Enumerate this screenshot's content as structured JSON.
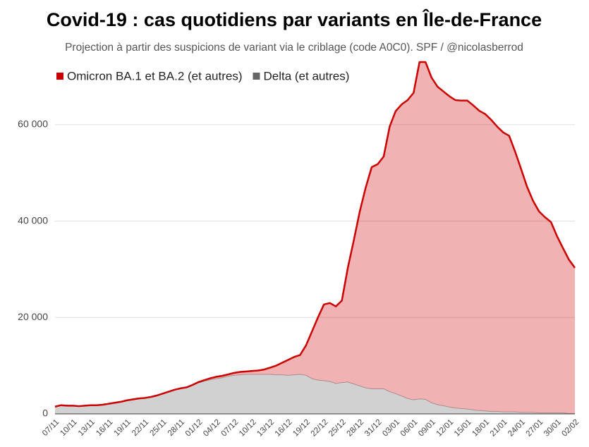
{
  "chart_data": {
    "type": "stacked_area",
    "title": "Covid-19 : cas quotidiens par variants en Île-de-France",
    "subtitle": "Projection à partir des suspicions de variant via le criblage (code A0C0). SPF / @nicolasberrod",
    "categories": [
      "07/11",
      null,
      null,
      "10/11",
      null,
      null,
      "13/11",
      null,
      null,
      "16/11",
      null,
      null,
      "19/11",
      null,
      null,
      "22/11",
      null,
      null,
      "25/11",
      null,
      null,
      "28/11",
      null,
      null,
      "01/12",
      null,
      null,
      "04/12",
      null,
      null,
      "07/12",
      null,
      null,
      "10/12",
      null,
      null,
      "13/12",
      null,
      null,
      "16/12",
      null,
      null,
      "19/12",
      null,
      null,
      "22/12",
      null,
      null,
      "25/12",
      null,
      null,
      "28/12",
      null,
      null,
      "31/12",
      null,
      null,
      "03/01",
      null,
      null,
      "06/01",
      null,
      null,
      "09/01",
      null,
      null,
      "12/01",
      null,
      null,
      "15/01",
      null,
      null,
      "18/01",
      null,
      null,
      "21/01",
      null,
      null,
      "24/01",
      null,
      null,
      "27/01",
      null,
      null,
      "30/01",
      null,
      null,
      "02/02"
    ],
    "series": [
      {
        "name": "Omicron BA.1 et BA.2 (et autres)",
        "color": "#cc0000",
        "values": [
          0,
          0,
          0,
          0,
          0,
          0,
          0,
          0,
          0,
          0,
          100,
          100,
          100,
          100,
          100,
          100,
          100,
          100,
          100,
          100,
          100,
          100,
          100,
          100,
          200,
          200,
          300,
          400,
          400,
          400,
          500,
          600,
          600,
          700,
          800,
          1000,
          1400,
          1900,
          2500,
          3200,
          3700,
          4000,
          6200,
          9800,
          13000,
          15800,
          16300,
          16000,
          17000,
          23700,
          29800,
          36200,
          41600,
          46000,
          46600,
          48200,
          55000,
          58600,
          60500,
          61900,
          63700,
          69900,
          70000,
          67500,
          66000,
          65200,
          64500,
          63900,
          63900,
          64000,
          63200,
          62200,
          61600,
          60500,
          59100,
          58000,
          57300,
          54000,
          50500,
          46800,
          43900,
          41800,
          40600,
          39600,
          36700,
          34200,
          31900,
          30200
        ]
      },
      {
        "name": "Delta (et autres)",
        "color": "#666666",
        "values": [
          1500,
          1800,
          1700,
          1700,
          1600,
          1700,
          1800,
          1800,
          1900,
          2100,
          2200,
          2400,
          2700,
          2900,
          3100,
          3200,
          3400,
          3700,
          4100,
          4500,
          4900,
          5200,
          5400,
          5900,
          6400,
          6800,
          7100,
          7300,
          7500,
          7800,
          8000,
          8100,
          8200,
          8200,
          8200,
          8200,
          8200,
          8100,
          8100,
          8000,
          8100,
          8200,
          8000,
          7300,
          7000,
          6900,
          6700,
          6300,
          6500,
          6600,
          6200,
          5800,
          5400,
          5200,
          5200,
          5200,
          4600,
          4200,
          3700,
          3200,
          2900,
          3100,
          3000,
          2300,
          1900,
          1700,
          1400,
          1200,
          1100,
          1000,
          800,
          700,
          600,
          500,
          500,
          400,
          400,
          400,
          300,
          300,
          300,
          200,
          200,
          200,
          200,
          200,
          100,
          100
        ]
      }
    ],
    "ylim": [
      0,
      73000
    ],
    "yticks": [
      0,
      {
        "value": 20000,
        "label": "20 000"
      },
      {
        "value": 40000,
        "label": "40 000"
      },
      {
        "value": 60000,
        "label": "60 000"
      }
    ],
    "grid": true
  }
}
